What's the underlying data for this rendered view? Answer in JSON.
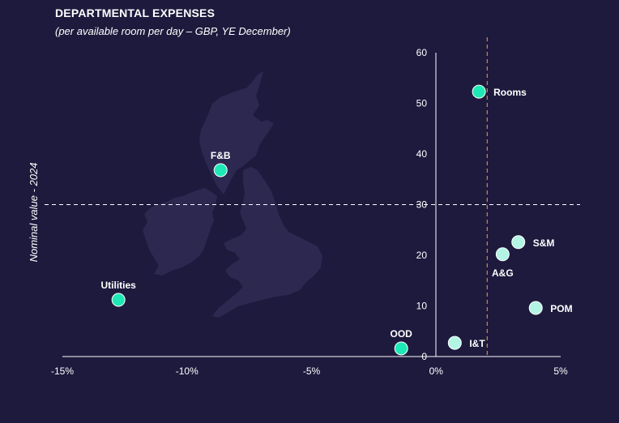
{
  "chart_data": {
    "type": "scatter",
    "title": "DEPARTMENTAL EXPENSES",
    "subtitle": "(per available room per day – GBP, YE December)",
    "xlabel": "",
    "ylabel": "Nominal value - 2024",
    "xlim": [
      -15,
      5
    ],
    "ylim": [
      0,
      60
    ],
    "x_ticks": [
      -15,
      -10,
      -5,
      0,
      5
    ],
    "x_tick_labels": [
      "-15%",
      "-10%",
      "-5%",
      "0%",
      "5%"
    ],
    "y_ticks": [
      0,
      10,
      20,
      30,
      40,
      50,
      60
    ],
    "y_tick_labels": [
      "0",
      "10",
      "20",
      "30",
      "40",
      "50",
      "60"
    ],
    "reference_lines": {
      "x": 2.05,
      "y": 30
    },
    "grid": false,
    "points": [
      {
        "label": "Rooms",
        "x": 1.72,
        "y": 52.3,
        "color": "#1de9b6",
        "label_pos": "right"
      },
      {
        "label": "F&B",
        "x": -8.65,
        "y": 36.8,
        "color": "#1de9b6",
        "label_pos": "top"
      },
      {
        "label": "Utilities",
        "x": -12.75,
        "y": 11.2,
        "color": "#1de9b6",
        "label_pos": "top"
      },
      {
        "label": "OOD",
        "x": -1.4,
        "y": 1.6,
        "color": "#1de9b6",
        "label_pos": "top"
      },
      {
        "label": "I&T",
        "x": 0.75,
        "y": 2.7,
        "color": "#b2f5e4",
        "label_pos": "right"
      },
      {
        "label": "A&G",
        "x": 2.67,
        "y": 20.2,
        "color": "#b2f5e4",
        "label_pos": "bottom"
      },
      {
        "label": "S&M",
        "x": 3.3,
        "y": 22.6,
        "color": "#b2f5e4",
        "label_pos": "right"
      },
      {
        "label": "POM",
        "x": 4.0,
        "y": 9.6,
        "color": "#b2f5e4",
        "label_pos": "right"
      }
    ]
  },
  "colors": {
    "background": "#1e1a3d",
    "map": "#2c2850",
    "ref_vertical": "#e8a33d",
    "ref_horizontal": "#ffffff"
  }
}
